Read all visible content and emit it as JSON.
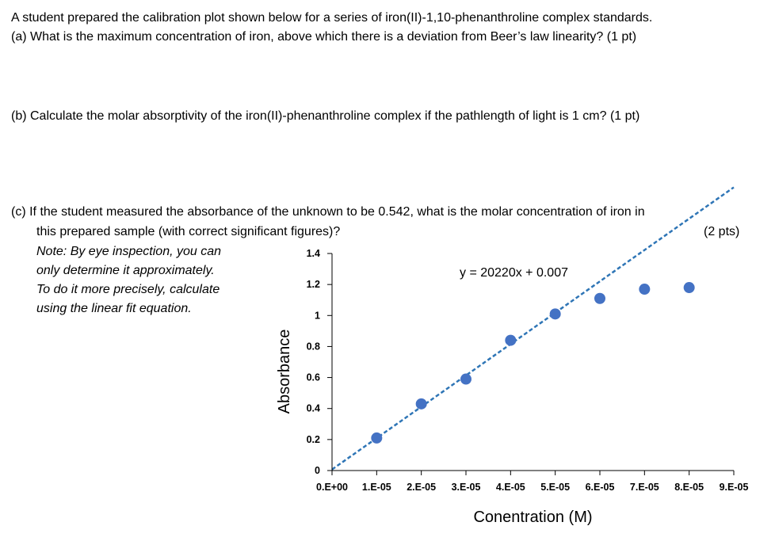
{
  "questions": {
    "intro": "A student prepared the calibration plot shown below for a series of iron(II)-1,10-phenanthroline complex standards.",
    "a": "(a)  What is the maximum concentration of iron, above which there is a deviation from Beer’s law linearity?  (1 pt)",
    "b": "(b)  Calculate the molar absorptivity of the iron(II)-phenanthroline complex if the pathlength of light is 1 cm? (1 pt)",
    "c_line1": "(c)   If the student measured the absorbance of the unknown to be 0.542, what is the molar concentration of iron in",
    "c_line2": "this prepared sample (with correct significant figures)?",
    "c_points": "(2 pts)"
  },
  "note": {
    "line1": "Note: By eye inspection, you can",
    "line2": "only determine it approximately.",
    "line3": "To do it more precisely, calculate",
    "line4": "using the linear fit equation."
  },
  "colors": {
    "marker": "#4472c4",
    "trendline": "#2e75b6",
    "axis": "#000000"
  },
  "chart_data": {
    "type": "scatter",
    "title": "",
    "xlabel": "Conentration (M)",
    "ylabel": "Absorbance",
    "xlim": [
      0,
      9e-05
    ],
    "ylim": [
      0,
      1.4
    ],
    "x_tick_values": [
      0,
      1e-05,
      2e-05,
      3e-05,
      4e-05,
      5e-05,
      6e-05,
      7e-05,
      8e-05,
      9e-05
    ],
    "x_tick_labels": [
      "0.E+00",
      "1.E-05",
      "2.E-05",
      "3.E-05",
      "4.E-05",
      "5.E-05",
      "6.E-05",
      "7.E-05",
      "8.E-05",
      "9.E-05"
    ],
    "y_tick_values": [
      0,
      0.2,
      0.4,
      0.6,
      0.8,
      1,
      1.2,
      1.4
    ],
    "y_tick_labels": [
      "0",
      "0.2",
      "0.4",
      "0.6",
      "0.8",
      "1",
      "1.2",
      "1.4"
    ],
    "grid": false,
    "series": [
      {
        "x": [
          1e-05,
          2e-05,
          3e-05,
          4e-05,
          5e-05,
          6e-05,
          7e-05,
          8e-05
        ],
        "y": [
          0.21,
          0.43,
          0.59,
          0.84,
          1.01,
          1.11,
          1.17,
          1.18
        ]
      }
    ],
    "trendline": {
      "type": "linear",
      "slope": 20220,
      "intercept": 0.007,
      "x_range": [
        0,
        9e-05
      ],
      "style": "dashed",
      "equation_label": "y = 20220x + 0.007"
    }
  }
}
